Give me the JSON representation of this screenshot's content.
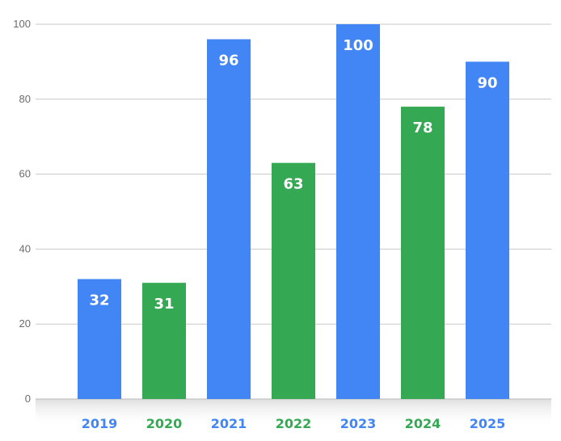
{
  "chart_data": {
    "type": "bar",
    "title": "",
    "xlabel": "",
    "ylabel": "",
    "categories": [
      "2019",
      "2020",
      "2021",
      "2022",
      "2023",
      "2024",
      "2025"
    ],
    "values": [
      32,
      31,
      96,
      63,
      100,
      78,
      90
    ],
    "data_labels": [
      "32",
      "31",
      "96",
      "63",
      "100",
      "78",
      "90"
    ],
    "ylim": [
      0,
      100
    ],
    "yticks": [
      "0",
      "20",
      "40",
      "60",
      "80",
      "100"
    ],
    "grid": true,
    "legend": "none",
    "colors": [
      "#4285f4",
      "#34a853",
      "#4285f4",
      "#34a853",
      "#4285f4",
      "#34a853",
      "#4285f4"
    ]
  },
  "colors": {
    "gridline": "#c8c8c8",
    "axis_label": "#6b6b6b",
    "baseline_shadow": "#e6e6e6"
  }
}
